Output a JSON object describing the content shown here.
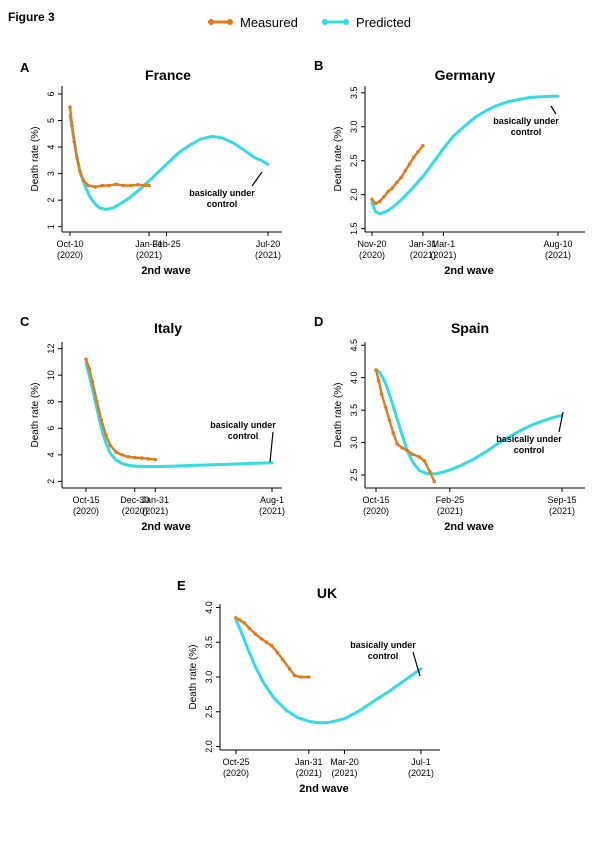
{
  "figure_label": "Figure 3",
  "legend": {
    "placement": "top-center",
    "items": [
      {
        "name": "Measured",
        "color": "#e07b1a"
      },
      {
        "name": "Predicted",
        "color": "#33dbe3"
      }
    ]
  },
  "colors": {
    "measured": "#e07b1a",
    "predicted": "#33dbe3",
    "axis": "#000000"
  },
  "chart_data": [
    {
      "panel": "A",
      "type": "line",
      "title": "France",
      "xlabel": "2nd wave",
      "ylabel": "Death rate (%)",
      "x_axis": "date",
      "xlim": [
        "2020-10-10",
        "2021-07-20"
      ],
      "ylim": [
        0.8,
        6.3
      ],
      "yticks": [
        1,
        2,
        3,
        4,
        5,
        6
      ],
      "xticks": [
        {
          "date": "2020-10-10",
          "label": "Oct-10",
          "sub": "(2020)"
        },
        {
          "date": "2021-01-31",
          "label": "Jan-31",
          "sub": "(2021)"
        },
        {
          "date": "2021-02-25",
          "label": "Feb-25",
          "sub": ""
        },
        {
          "date": "2021-07-20",
          "label": "Jul-20",
          "sub": "(2021)"
        }
      ],
      "annotation": {
        "text": [
          "basically under",
          "control"
        ],
        "at": {
          "date": "2021-07-20",
          "y": 3.4
        }
      },
      "series": [
        {
          "name": "Measured",
          "x": [
            "2020-10-10",
            "2020-10-13",
            "2020-10-16",
            "2020-10-20",
            "2020-10-24",
            "2020-10-29",
            "2020-11-05",
            "2020-11-15",
            "2020-11-25",
            "2020-12-05",
            "2020-12-15",
            "2020-12-25",
            "2021-01-05",
            "2021-01-15",
            "2021-01-25",
            "2021-01-31"
          ],
          "y": [
            5.5,
            4.8,
            4.2,
            3.6,
            3.1,
            2.75,
            2.55,
            2.5,
            2.55,
            2.55,
            2.6,
            2.55,
            2.55,
            2.58,
            2.55,
            2.55
          ]
        },
        {
          "name": "Predicted",
          "x": [
            "2020-10-10",
            "2020-10-15",
            "2020-10-20",
            "2020-10-25",
            "2020-11-01",
            "2020-11-08",
            "2020-11-15",
            "2020-11-22",
            "2020-12-01",
            "2020-12-10",
            "2020-12-20",
            "2021-01-01",
            "2021-01-15",
            "2021-02-01",
            "2021-02-15",
            "2021-03-01",
            "2021-03-15",
            "2021-04-01",
            "2021-04-15",
            "2021-05-01",
            "2021-05-15",
            "2021-06-01",
            "2021-06-15",
            "2021-07-01",
            "2021-07-10",
            "2021-07-20"
          ],
          "y": [
            5.2,
            4.4,
            3.6,
            3.0,
            2.5,
            2.1,
            1.85,
            1.7,
            1.65,
            1.7,
            1.85,
            2.05,
            2.35,
            2.75,
            3.1,
            3.45,
            3.8,
            4.1,
            4.3,
            4.4,
            4.35,
            4.15,
            3.9,
            3.6,
            3.5,
            3.35
          ]
        }
      ]
    },
    {
      "panel": "B",
      "type": "line",
      "title": "Germany",
      "xlabel": "2nd wave",
      "ylabel": "Death rate (%)",
      "x_axis": "date",
      "xlim": [
        "2020-11-20",
        "2021-08-10"
      ],
      "ylim": [
        1.45,
        3.6
      ],
      "yticks": [
        1.5,
        2.0,
        2.5,
        3.0,
        3.5
      ],
      "xticks": [
        {
          "date": "2020-11-20",
          "label": "Nov-20",
          "sub": "(2020)"
        },
        {
          "date": "2021-01-31",
          "label": "Jan-31",
          "sub": "(2021)"
        },
        {
          "date": "2021-03-01",
          "label": "Mar-1",
          "sub": "(2021)"
        },
        {
          "date": "2021-08-10",
          "label": "Aug-10",
          "sub": "(2021)"
        }
      ],
      "annotation": {
        "text": [
          "basically under",
          "control"
        ],
        "at": {
          "date": "2021-08-10",
          "y": 3.45
        }
      },
      "series": [
        {
          "name": "Measured",
          "x": [
            "2020-11-20",
            "2020-11-25",
            "2020-12-01",
            "2020-12-07",
            "2020-12-13",
            "2020-12-19",
            "2020-12-25",
            "2020-12-31",
            "2021-01-06",
            "2021-01-12",
            "2021-01-18",
            "2021-01-24",
            "2021-01-31"
          ],
          "y": [
            1.93,
            1.87,
            1.9,
            1.97,
            2.05,
            2.1,
            2.18,
            2.25,
            2.35,
            2.45,
            2.55,
            2.63,
            2.72
          ]
        },
        {
          "name": "Predicted",
          "x": [
            "2020-11-20",
            "2020-11-25",
            "2020-12-01",
            "2020-12-10",
            "2020-12-20",
            "2021-01-01",
            "2021-01-15",
            "2021-02-01",
            "2021-02-15",
            "2021-03-01",
            "2021-03-15",
            "2021-04-01",
            "2021-04-15",
            "2021-05-01",
            "2021-05-15",
            "2021-06-01",
            "2021-06-15",
            "2021-07-01",
            "2021-07-15",
            "2021-08-01",
            "2021-08-10"
          ],
          "y": [
            1.88,
            1.75,
            1.72,
            1.75,
            1.82,
            1.93,
            2.08,
            2.28,
            2.48,
            2.68,
            2.86,
            3.02,
            3.14,
            3.24,
            3.31,
            3.37,
            3.4,
            3.43,
            3.44,
            3.45,
            3.45
          ]
        }
      ]
    },
    {
      "panel": "C",
      "type": "line",
      "title": "Italy",
      "xlabel": "2nd wave",
      "ylabel": "Death rate (%)",
      "x_axis": "date",
      "xlim": [
        "2020-10-15",
        "2021-08-01"
      ],
      "ylim": [
        1.5,
        12.5
      ],
      "yticks": [
        2,
        4,
        6,
        8,
        10,
        12
      ],
      "xticks": [
        {
          "date": "2020-10-15",
          "label": "Oct-15",
          "sub": "(2020)"
        },
        {
          "date": "2020-12-30",
          "label": "Dec-30",
          "sub": "(2020)"
        },
        {
          "date": "2021-01-31",
          "label": "Jan-31",
          "sub": "(2021)"
        },
        {
          "date": "2021-08-01",
          "label": "Aug-1",
          "sub": "(2021)"
        }
      ],
      "annotation": {
        "text": [
          "basically under",
          "control"
        ],
        "at": {
          "date": "2021-08-01",
          "y": 3.4
        }
      },
      "series": [
        {
          "name": "Measured",
          "x": [
            "2020-10-15",
            "2020-10-20",
            "2020-10-25",
            "2020-11-01",
            "2020-11-08",
            "2020-11-15",
            "2020-11-22",
            "2020-12-01",
            "2020-12-10",
            "2020-12-20",
            "2020-12-30",
            "2021-01-10",
            "2021-01-20",
            "2021-01-31"
          ],
          "y": [
            11.2,
            10.5,
            9.5,
            8.0,
            6.6,
            5.5,
            4.7,
            4.2,
            4.0,
            3.85,
            3.8,
            3.75,
            3.7,
            3.65
          ]
        },
        {
          "name": "Predicted",
          "x": [
            "2020-10-15",
            "2020-10-20",
            "2020-10-25",
            "2020-11-01",
            "2020-11-08",
            "2020-11-15",
            "2020-11-22",
            "2020-12-01",
            "2020-12-10",
            "2020-12-20",
            "2021-01-01",
            "2021-01-20",
            "2021-02-10",
            "2021-03-01",
            "2021-04-01",
            "2021-05-01",
            "2021-06-01",
            "2021-07-01",
            "2021-08-01"
          ],
          "y": [
            10.9,
            10.0,
            9.0,
            7.5,
            6.0,
            4.9,
            4.1,
            3.6,
            3.35,
            3.2,
            3.15,
            3.12,
            3.12,
            3.15,
            3.2,
            3.25,
            3.3,
            3.35,
            3.4
          ]
        }
      ]
    },
    {
      "panel": "D",
      "type": "line",
      "title": "Spain",
      "xlabel": "2nd wave",
      "ylabel": "Death rate (%)",
      "x_axis": "date",
      "xlim": [
        "2020-10-15",
        "2021-09-15"
      ],
      "ylim": [
        2.3,
        4.55
      ],
      "yticks": [
        2.5,
        3.0,
        3.5,
        4.0,
        4.5
      ],
      "xticks": [
        {
          "date": "2020-10-15",
          "label": "Oct-15",
          "sub": "(2020)"
        },
        {
          "date": "2021-02-25",
          "label": "Feb-25",
          "sub": "(2021)"
        },
        {
          "date": "2021-09-15",
          "label": "Sep-15",
          "sub": "(2021)"
        }
      ],
      "annotation": {
        "text": [
          "basically under",
          "control"
        ],
        "at": {
          "date": "2021-09-15",
          "y": 3.42
        }
      },
      "series": [
        {
          "name": "Measured",
          "x": [
            "2020-10-15",
            "2020-10-20",
            "2020-10-25",
            "2020-11-01",
            "2020-11-08",
            "2020-11-15",
            "2020-11-22",
            "2020-12-01",
            "2020-12-10",
            "2020-12-20",
            "2021-01-01",
            "2021-01-10",
            "2021-01-20",
            "2021-01-28"
          ],
          "y": [
            4.12,
            3.95,
            3.75,
            3.55,
            3.35,
            3.15,
            2.98,
            2.92,
            2.88,
            2.82,
            2.78,
            2.72,
            2.55,
            2.4
          ]
        },
        {
          "name": "Predicted",
          "x": [
            "2020-10-15",
            "2020-10-22",
            "2020-11-01",
            "2020-11-10",
            "2020-11-20",
            "2020-12-01",
            "2020-12-10",
            "2020-12-20",
            "2021-01-01",
            "2021-01-15",
            "2021-02-01",
            "2021-02-15",
            "2021-03-01",
            "2021-03-20",
            "2021-04-10",
            "2021-05-01",
            "2021-05-20",
            "2021-06-10",
            "2021-07-01",
            "2021-07-20",
            "2021-08-10",
            "2021-09-01",
            "2021-09-15"
          ],
          "y": [
            4.12,
            4.08,
            3.92,
            3.7,
            3.42,
            3.12,
            2.88,
            2.7,
            2.57,
            2.52,
            2.52,
            2.55,
            2.59,
            2.66,
            2.75,
            2.86,
            2.97,
            3.08,
            3.18,
            3.26,
            3.33,
            3.39,
            3.42
          ]
        }
      ]
    },
    {
      "panel": "E",
      "type": "line",
      "title": "UK",
      "xlabel": "2nd wave",
      "ylabel": "Death rate (%)",
      "x_axis": "date",
      "xlim": [
        "2020-10-25",
        "2021-07-01"
      ],
      "ylim": [
        1.95,
        4.05
      ],
      "yticks": [
        2.0,
        2.5,
        3.0,
        3.5,
        4.0
      ],
      "xticks": [
        {
          "date": "2020-10-25",
          "label": "Oct-25",
          "sub": "(2020)"
        },
        {
          "date": "2021-01-31",
          "label": "Jan-31",
          "sub": "(2021)"
        },
        {
          "date": "2021-03-20",
          "label": "Mar-20",
          "sub": "(2021)"
        },
        {
          "date": "2021-07-01",
          "label": "Jul-1",
          "sub": "(2021)"
        }
      ],
      "annotation": {
        "text": [
          "basically under",
          "control"
        ],
        "at": {
          "date": "2021-07-01",
          "y": 3.12
        }
      },
      "series": [
        {
          "name": "Measured",
          "x": [
            "2020-10-25",
            "2020-10-30",
            "2020-11-05",
            "2020-11-12",
            "2020-11-20",
            "2020-11-28",
            "2020-12-05",
            "2020-12-12",
            "2020-12-20",
            "2020-12-27",
            "2021-01-05",
            "2021-01-12",
            "2021-01-20",
            "2021-01-31"
          ],
          "y": [
            3.85,
            3.82,
            3.78,
            3.7,
            3.62,
            3.55,
            3.5,
            3.45,
            3.35,
            3.25,
            3.12,
            3.02,
            3.0,
            3.0
          ]
        },
        {
          "name": "Predicted",
          "x": [
            "2020-10-25",
            "2020-11-01",
            "2020-11-10",
            "2020-11-20",
            "2020-12-01",
            "2020-12-15",
            "2021-01-01",
            "2021-01-15",
            "2021-02-01",
            "2021-02-15",
            "2021-03-01",
            "2021-03-20",
            "2021-04-10",
            "2021-05-01",
            "2021-05-20",
            "2021-06-10",
            "2021-07-01"
          ],
          "y": [
            3.82,
            3.65,
            3.4,
            3.15,
            2.92,
            2.7,
            2.52,
            2.42,
            2.36,
            2.34,
            2.35,
            2.4,
            2.52,
            2.67,
            2.8,
            2.96,
            3.12
          ]
        }
      ]
    }
  ]
}
